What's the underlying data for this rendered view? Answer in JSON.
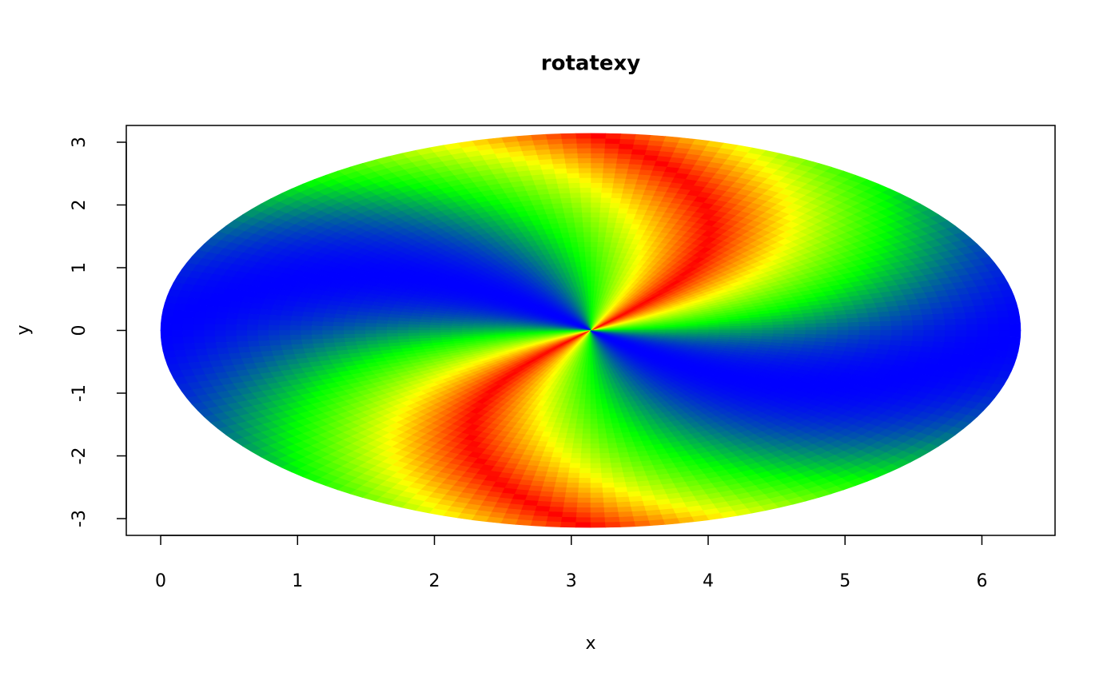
{
  "chart_data": {
    "type": "image",
    "title": "rotatexy",
    "xlabel": "x",
    "ylabel": "y",
    "xlim": [
      -0.2513,
      6.5345
    ],
    "ylim": [
      -3.2673,
      3.2673
    ],
    "xticks": [
      0,
      1,
      2,
      3,
      4,
      5,
      6
    ],
    "yticks": [
      -3,
      -2,
      -1,
      0,
      1,
      2,
      3
    ]
  }
}
